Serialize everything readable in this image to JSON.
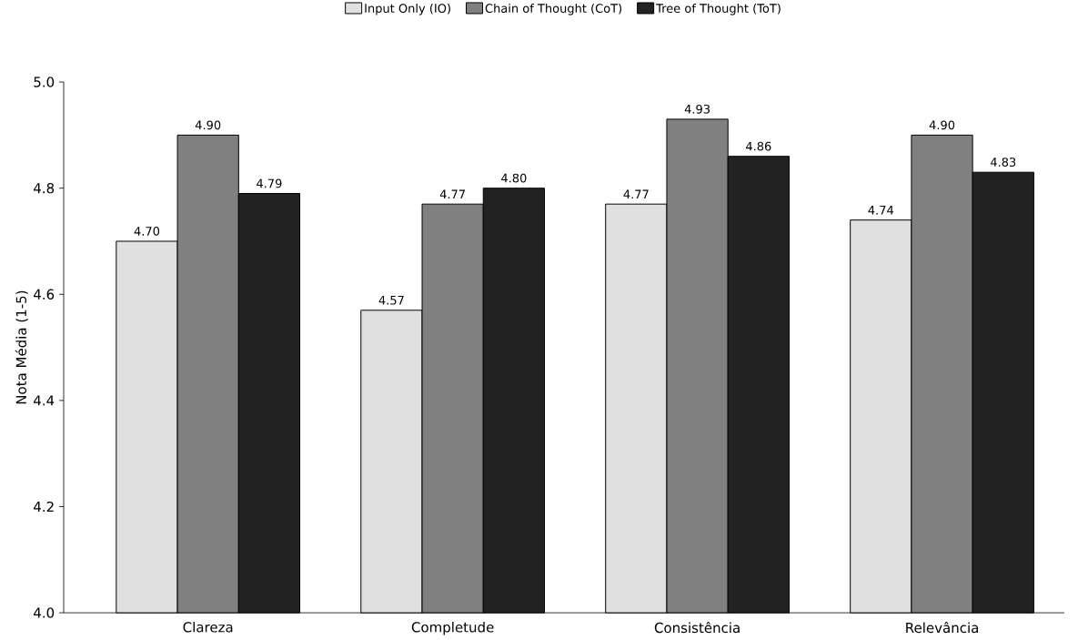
{
  "chart_data": {
    "type": "bar",
    "ylabel": "Nota Média (1-5)",
    "categories": [
      "Clareza",
      "Completude",
      "Consistência",
      "Relevância"
    ],
    "series": [
      {
        "name": "Input Only (IO)",
        "color": "#e0e0e0",
        "values": [
          4.7,
          4.57,
          4.77,
          4.74
        ],
        "value_labels": [
          "4.70",
          "4.57",
          "4.77",
          "4.74"
        ]
      },
      {
        "name": "Chain of Thought (CoT)",
        "color": "#808080",
        "values": [
          4.9,
          4.77,
          4.93,
          4.9
        ],
        "value_labels": [
          "4.90",
          "4.77",
          "4.93",
          "4.90"
        ]
      },
      {
        "name": "Tree of Thought (ToT)",
        "color": "#222222",
        "values": [
          4.79,
          4.8,
          4.86,
          4.83
        ],
        "value_labels": [
          "4.79",
          "4.80",
          "4.86",
          "4.83"
        ]
      }
    ],
    "ylim": [
      4.0,
      5.0
    ],
    "yticks": [
      {
        "value": 4.0,
        "label": "4.0"
      },
      {
        "value": 4.2,
        "label": "4.2"
      },
      {
        "value": 4.4,
        "label": "4.4"
      },
      {
        "value": 4.6,
        "label": "4.6"
      },
      {
        "value": 4.8,
        "label": "4.8"
      },
      {
        "value": 5.0,
        "label": "5.0"
      }
    ],
    "grid": false,
    "legend": "top"
  }
}
